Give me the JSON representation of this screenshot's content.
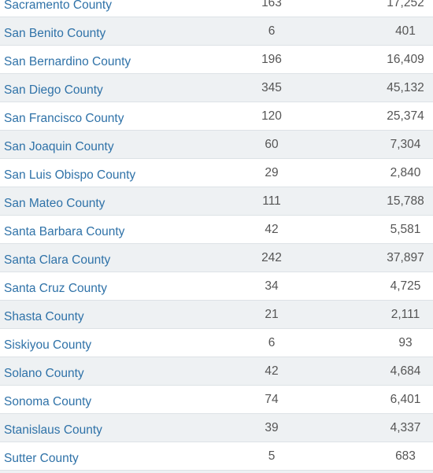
{
  "table": {
    "rows": [
      [
        "Sacramento County",
        "163",
        "17,252"
      ],
      [
        "San Benito County",
        "6",
        "401"
      ],
      [
        "San Bernardino County",
        "196",
        "16,409"
      ],
      [
        "San Diego County",
        "345",
        "45,132"
      ],
      [
        "San Francisco County",
        "120",
        "25,374"
      ],
      [
        "San Joaquin County",
        "60",
        "7,304"
      ],
      [
        "San Luis Obispo County",
        "29",
        "2,840"
      ],
      [
        "San Mateo County",
        "111",
        "15,788"
      ],
      [
        "Santa Barbara County",
        "42",
        "5,581"
      ],
      [
        "Santa Clara County",
        "242",
        "37,897"
      ],
      [
        "Santa Cruz County",
        "34",
        "4,725"
      ],
      [
        "Shasta County",
        "21",
        "2,111"
      ],
      [
        "Siskiyou County",
        "6",
        "93"
      ],
      [
        "Solano County",
        "42",
        "4,684"
      ],
      [
        "Sonoma County",
        "74",
        "6,401"
      ],
      [
        "Stanislaus County",
        "39",
        "4,337"
      ],
      [
        "Sutter County",
        "5",
        "683"
      ]
    ]
  }
}
